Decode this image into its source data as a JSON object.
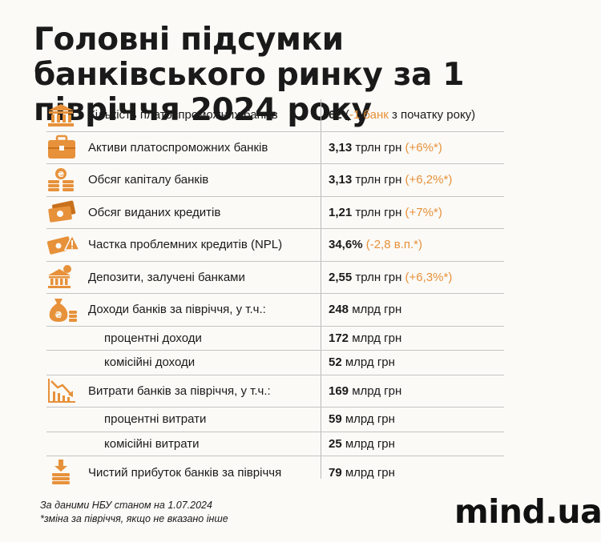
{
  "title": "Головні підсумки банківського ринку за 1 півріччя 2024 року",
  "colors": {
    "accent": "#e7913a",
    "accent_dark": "#c8701c",
    "text": "#1a1a1a"
  },
  "rows": [
    {
      "icon": "bank-building-icon",
      "label": "Кількість платоспроможних банків",
      "value": "62",
      "open": " (",
      "change": "-1 банк",
      "close": " з початку року)"
    },
    {
      "icon": "briefcase-icon",
      "label": "Активи платоспроможних банків",
      "value": "3,13",
      "unit": " трлн грн ",
      "change": "(+6%*)"
    },
    {
      "icon": "coin-stack-icon",
      "label": "Обсяг капіталу банків",
      "value": "3,13",
      "unit": " трлн грн ",
      "change": "(+6,2%*)"
    },
    {
      "icon": "banknotes-icon",
      "label": "Обсяг виданих кредитів",
      "value": "1,21",
      "unit": " трлн грн ",
      "change": "(+7%*)"
    },
    {
      "icon": "warning-banknote-icon",
      "label": "Частка проблемних кредитів (NPL)",
      "value": "34,6%",
      "change": " (-2,8 в.п.*)"
    },
    {
      "icon": "bank-deposit-icon",
      "label": "Депозити, залучені банками",
      "value": "2,55",
      "unit": " трлн грн ",
      "change": "(+6,3%*)"
    },
    {
      "icon": "money-bag-icon",
      "label": "Доходи банків за півріччя, у т.ч.:",
      "value": "248",
      "unit": " млрд грн"
    },
    {
      "label": "процентні доходи",
      "value": "172",
      "unit": " млрд грн"
    },
    {
      "label": "комісійні доходи",
      "value": "52",
      "unit": " млрд грн"
    },
    {
      "icon": "declining-chart-icon",
      "label": "Витрати банків за півріччя, у т.ч.:",
      "value": "169",
      "unit": " млрд грн"
    },
    {
      "label": "процентні витрати",
      "value": "59",
      "unit": " млрд грн"
    },
    {
      "label": "комісійні витрати",
      "value": "25",
      "unit": " млрд грн"
    },
    {
      "icon": "coins-down-arrow-icon",
      "label": "Чистий прибуток банків за півріччя",
      "value": "79",
      "unit": " млрд грн"
    }
  ],
  "footnote": {
    "line1": "За даними НБУ станом на 1.07.2024",
    "line2": "*зміна за півріччя, якщо не вказано інше"
  },
  "logo": "mind.ua"
}
